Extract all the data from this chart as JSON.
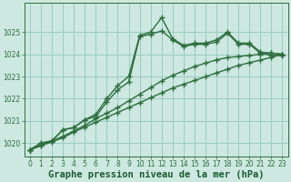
{
  "title": "Graphe pression niveau de la mer (hPa)",
  "background_color": "#cce8e0",
  "grid_color": "#99ccc2",
  "line_color": "#2d6e3e",
  "xlabel_color": "#1a5c30",
  "xlim": [
    -0.5,
    23.5
  ],
  "ylim": [
    1019.4,
    1026.3
  ],
  "yticks": [
    1020,
    1021,
    1022,
    1023,
    1024,
    1025
  ],
  "xticks": [
    0,
    1,
    2,
    3,
    4,
    5,
    6,
    7,
    8,
    9,
    10,
    11,
    12,
    13,
    14,
    15,
    16,
    17,
    18,
    19,
    20,
    21,
    22,
    23
  ],
  "series1": [
    1019.7,
    1020.0,
    1020.1,
    1020.6,
    1020.7,
    1021.05,
    1021.3,
    1022.0,
    1022.6,
    1023.0,
    1024.85,
    1025.0,
    1025.65,
    1024.7,
    1024.4,
    1024.5,
    1024.5,
    1024.65,
    1025.0,
    1024.5,
    1024.5,
    1024.1,
    1024.05,
    1024.0
  ],
  "series2": [
    1019.7,
    1020.0,
    1020.1,
    1020.6,
    1020.7,
    1021.05,
    1021.2,
    1021.85,
    1022.4,
    1022.75,
    1024.8,
    1024.9,
    1025.05,
    1024.65,
    1024.35,
    1024.45,
    1024.45,
    1024.55,
    1024.95,
    1024.45,
    1024.45,
    1024.05,
    1023.95,
    1023.95
  ],
  "series3": [
    1019.7,
    1019.9,
    1020.1,
    1020.3,
    1020.55,
    1020.8,
    1021.1,
    1021.35,
    1021.6,
    1021.9,
    1022.2,
    1022.5,
    1022.8,
    1023.05,
    1023.25,
    1023.45,
    1023.6,
    1023.75,
    1023.85,
    1023.9,
    1023.95,
    1024.0,
    1024.05,
    1024.0
  ],
  "series4": [
    1019.7,
    1019.88,
    1020.06,
    1020.24,
    1020.5,
    1020.72,
    1020.94,
    1021.16,
    1021.38,
    1021.6,
    1021.82,
    1022.04,
    1022.26,
    1022.48,
    1022.65,
    1022.82,
    1022.99,
    1023.16,
    1023.33,
    1023.5,
    1023.62,
    1023.74,
    1023.86,
    1024.0
  ],
  "marker": "+",
  "markersize": 4,
  "markeredgewidth": 1.0,
  "linewidth": 1.0,
  "title_fontsize": 7.5,
  "tick_fontsize": 5.5
}
